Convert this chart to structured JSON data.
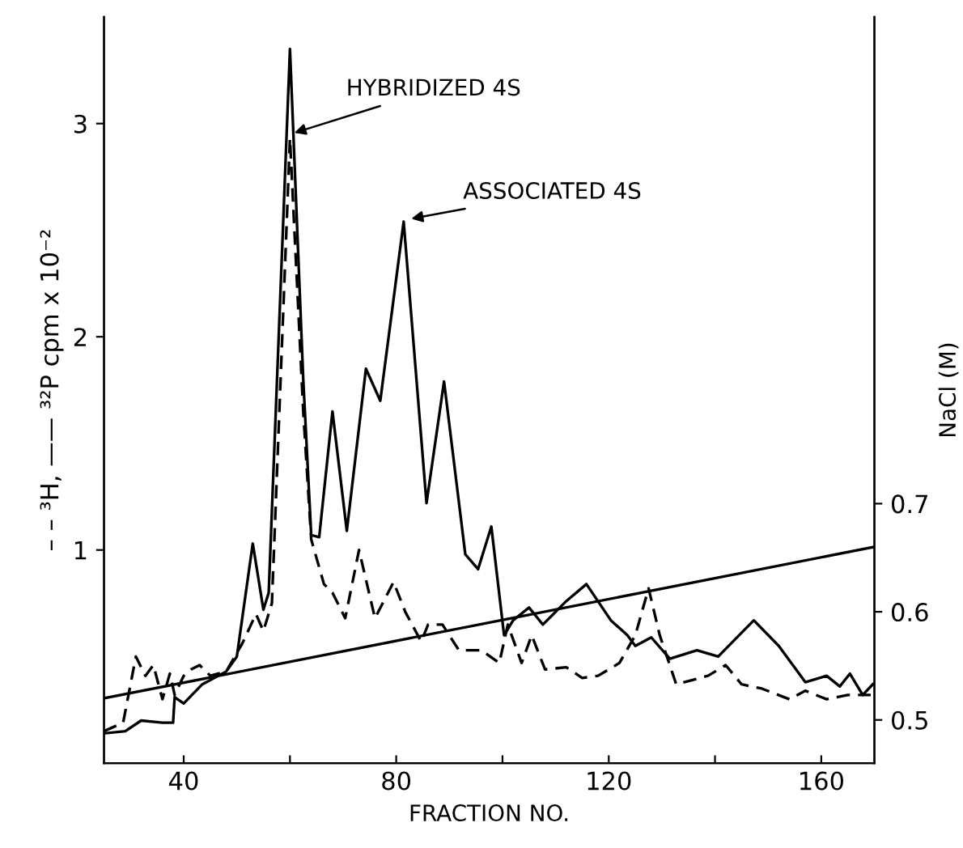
{
  "chart_data": {
    "type": "line",
    "xlabel": "FRACTION NO.",
    "ylabel": "– – ³H, —— ³²P cpm x 10⁻²",
    "y2label": "NaCl (M)",
    "xlim": [
      25,
      170
    ],
    "xticks": [
      40,
      {
        "value": 60,
        "label": null
      },
      80,
      {
        "value": 100,
        "label": null
      },
      120,
      {
        "value": 140,
        "label": null
      },
      160
    ],
    "ylim": [
      0,
      3.5
    ],
    "yticks": [
      1,
      2,
      3
    ],
    "y2lim": [
      0.46,
      1.15
    ],
    "y2ticks": [
      0.5,
      0.6,
      0.7
    ],
    "grid": false,
    "legend": false,
    "series": [
      {
        "color": "#000000",
        "line_style": "solid",
        "x": [
          25,
          29,
          32,
          36,
          38,
          38.3,
          40,
          43.5,
          48,
          50,
          53,
          55,
          56,
          60,
          62.5,
          64,
          65.5,
          68,
          70.7,
          74.3,
          77,
          81.4,
          85.7,
          89,
          93,
          95.4,
          97.9,
          100.3,
          102,
          105,
          107.6,
          112,
          115.8,
          120.4,
          123.5,
          125,
          128,
          131.5,
          136.6,
          140.6,
          147.3,
          152,
          157,
          161,
          163.5,
          165.4,
          167.8,
          169.7
        ],
        "values": [
          0.14,
          0.15,
          0.2,
          0.19,
          0.19,
          0.31,
          0.28,
          0.37,
          0.43,
          0.5,
          1.03,
          0.72,
          0.8,
          3.35,
          1.8,
          1.07,
          1.06,
          1.65,
          1.09,
          1.85,
          1.7,
          2.54,
          1.22,
          1.79,
          0.98,
          0.91,
          1.11,
          0.6,
          0.67,
          0.73,
          0.65,
          0.76,
          0.84,
          0.67,
          0.6,
          0.55,
          0.59,
          0.49,
          0.53,
          0.5,
          0.67,
          0.55,
          0.38,
          0.41,
          0.36,
          0.42,
          0.32,
          0.37
        ]
      },
      {
        "color": "#000000",
        "line_style": "dashed",
        "x": [
          25,
          28.6,
          31,
          32.8,
          34.3,
          36,
          37.4,
          38.3,
          40,
          41.4,
          43,
          45,
          48,
          51,
          53.6,
          55,
          56.6,
          60,
          62.5,
          64,
          66.4,
          68,
          70.4,
          73,
          76,
          79.5,
          81.7,
          84.7,
          86,
          88.7,
          91.8,
          96,
          99.4,
          101,
          103.6,
          105.5,
          108,
          112,
          115,
          118,
          122,
          125,
          127.5,
          129.6,
          132.7,
          138.7,
          142,
          145,
          148.8,
          154,
          157,
          161,
          165,
          169.3
        ],
        "values": [
          0.15,
          0.19,
          0.5,
          0.41,
          0.46,
          0.3,
          0.42,
          0.32,
          0.41,
          0.44,
          0.46,
          0.41,
          0.43,
          0.56,
          0.7,
          0.62,
          0.75,
          2.93,
          1.65,
          1.05,
          0.84,
          0.8,
          0.68,
          1.0,
          0.68,
          0.85,
          0.71,
          0.57,
          0.65,
          0.65,
          0.53,
          0.53,
          0.47,
          0.65,
          0.47,
          0.6,
          0.44,
          0.45,
          0.4,
          0.41,
          0.47,
          0.6,
          0.82,
          0.6,
          0.37,
          0.41,
          0.46,
          0.37,
          0.35,
          0.3,
          0.34,
          0.3,
          0.32,
          0.32
        ]
      },
      {
        "color": "#000000",
        "line_style": "solid",
        "axis": "y2",
        "x": [
          25,
          170
        ],
        "values": [
          0.52,
          0.66
        ]
      }
    ],
    "annotations": [
      {
        "text": "HYBRIDIZED 4S",
        "x": 60,
        "y": 2.95
      },
      {
        "text": "ASSOCIATED 4S",
        "x": 82,
        "y": 2.55
      }
    ]
  }
}
